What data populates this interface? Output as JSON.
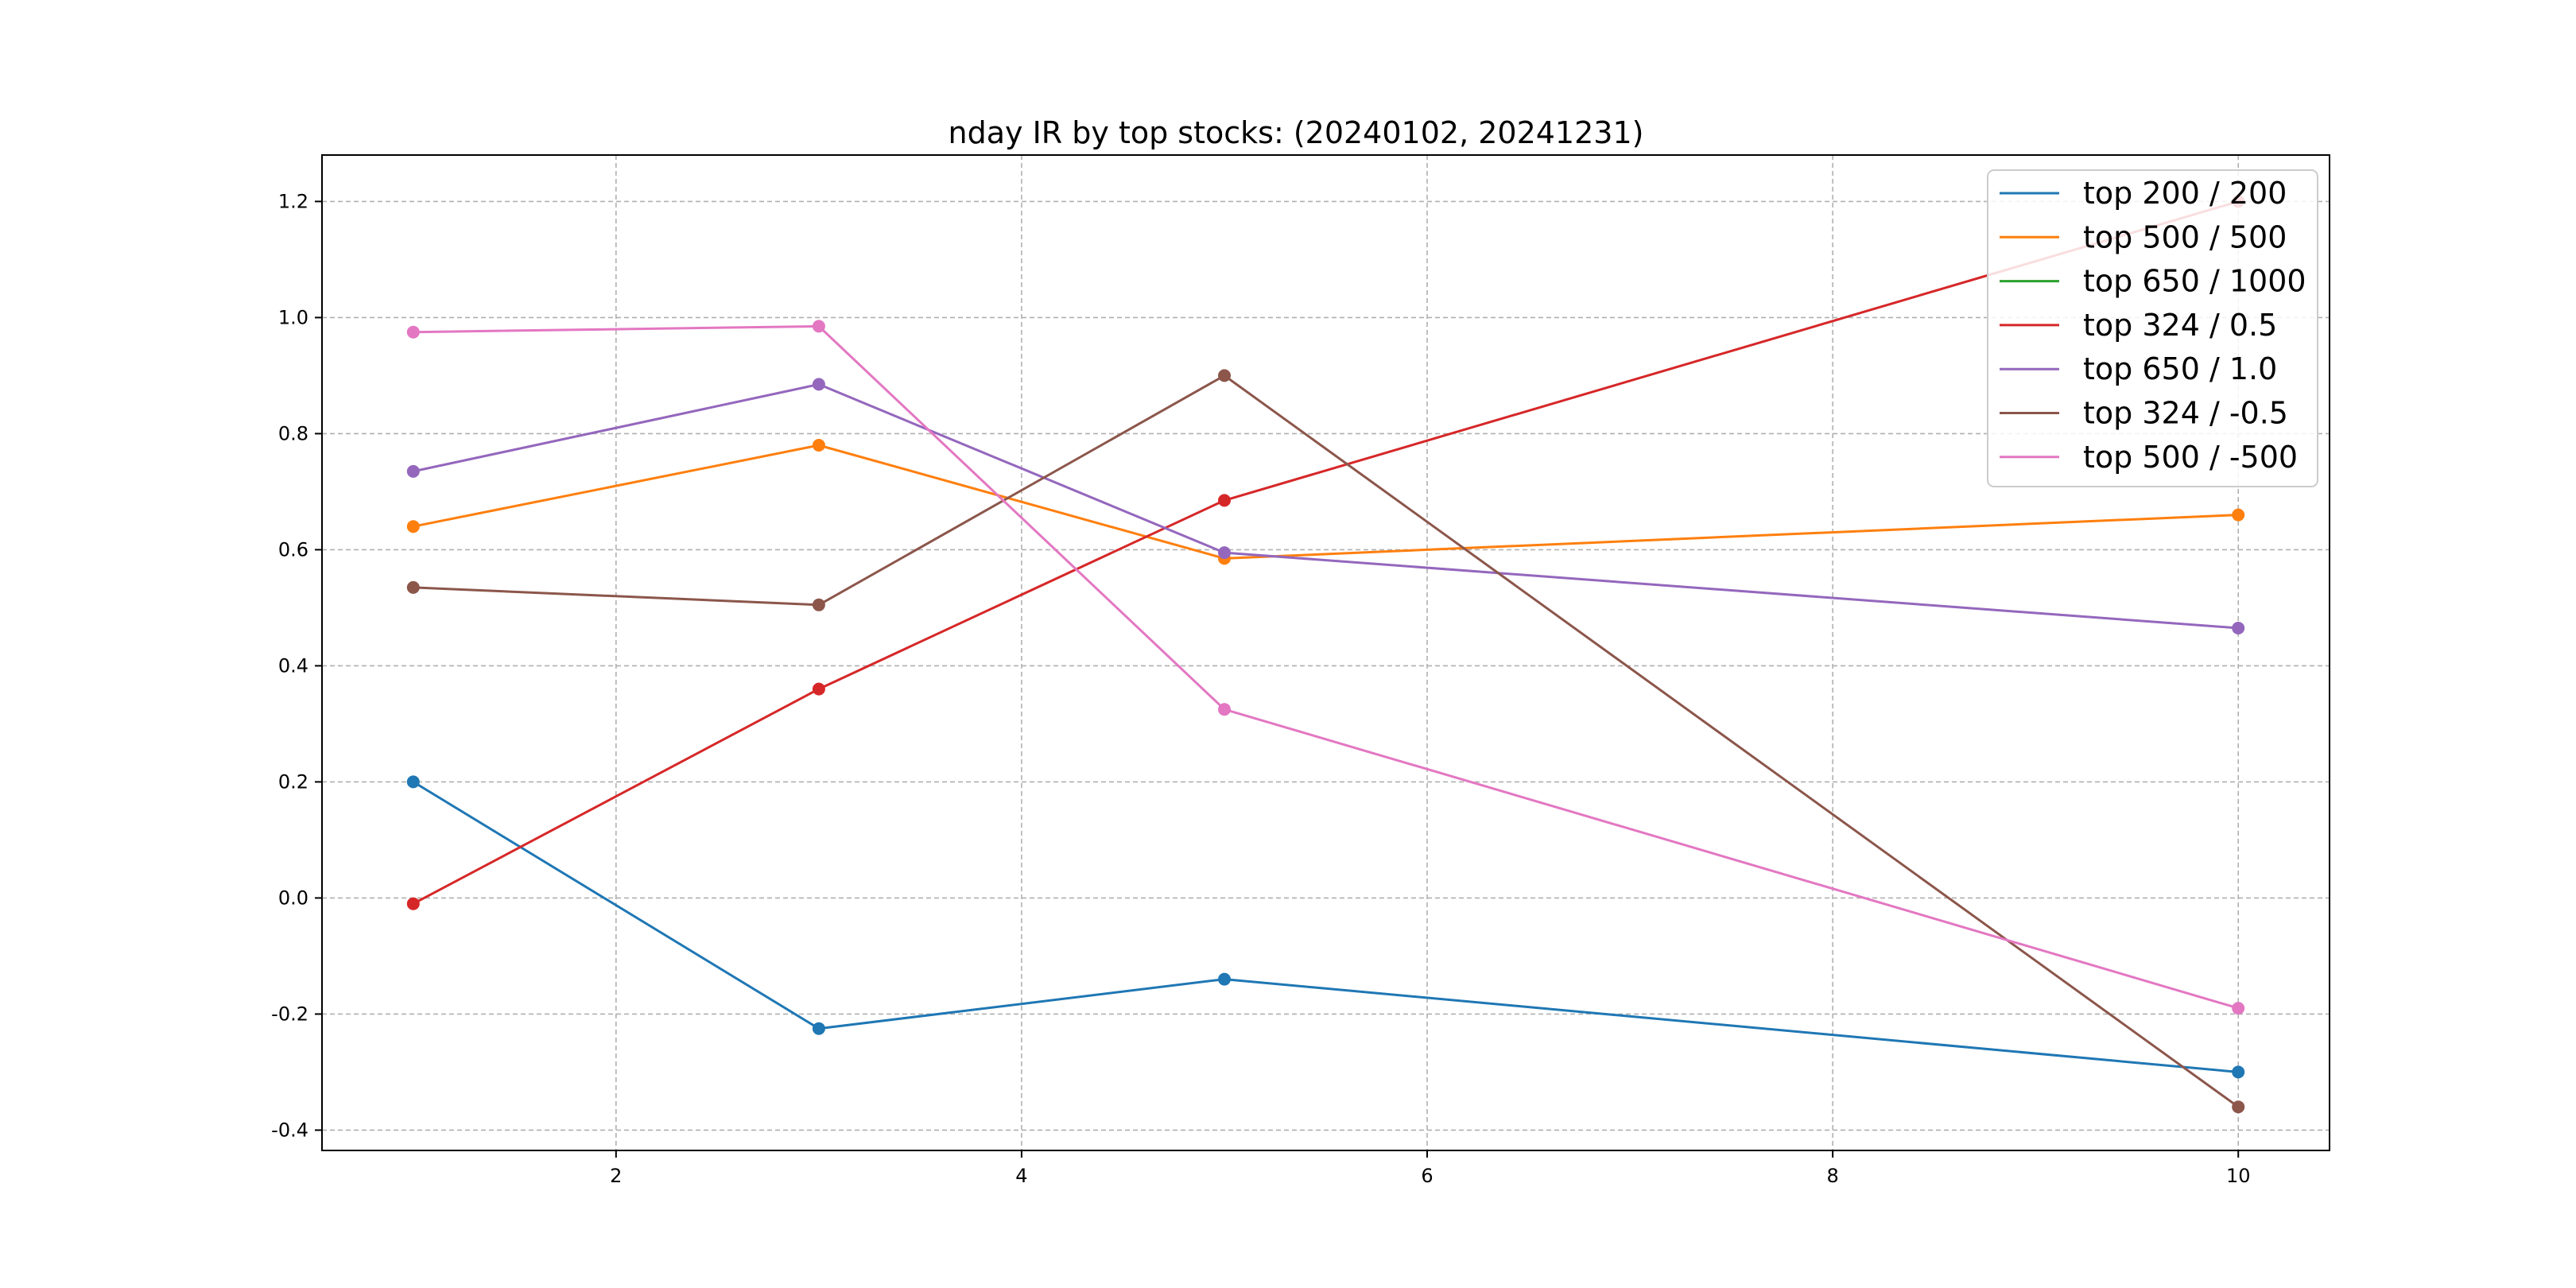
{
  "chart_data": {
    "type": "line",
    "title": "nday IR by top stocks: (20240102, 20241231)",
    "xlabel": "",
    "ylabel": "",
    "xlim": [
      0.55,
      10.45
    ],
    "ylim": [
      -0.435,
      1.28
    ],
    "xticks": [
      2,
      4,
      6,
      8,
      10
    ],
    "yticks": [
      -0.4,
      -0.2,
      0.0,
      0.2,
      0.4,
      0.6,
      0.8,
      1.0,
      1.2
    ],
    "xtick_labels": [
      "2",
      "4",
      "6",
      "8",
      "10"
    ],
    "ytick_labels": [
      "-0.4",
      "-0.2",
      "0.0",
      "0.2",
      "0.4",
      "0.6",
      "0.8",
      "1.0",
      "1.2"
    ],
    "grid": true,
    "legend_position": "top-right",
    "x": [
      1,
      3,
      5,
      10
    ],
    "series": [
      {
        "name": "top 200 / 200",
        "color": "#1f77b4",
        "values": [
          0.2,
          -0.225,
          -0.14,
          -0.3
        ]
      },
      {
        "name": "top 500 / 500",
        "color": "#ff7f0e",
        "values": [
          0.64,
          0.78,
          0.585,
          0.66
        ]
      },
      {
        "name": "top 650 / 1000",
        "color": "#2ca02c",
        "values": [
          null,
          null,
          null,
          null
        ]
      },
      {
        "name": "top 324 / 0.5",
        "color": "#d62728",
        "values": [
          -0.01,
          0.36,
          0.685,
          1.2
        ]
      },
      {
        "name": "top 650 / 1.0",
        "color": "#9467bd",
        "values": [
          0.735,
          0.885,
          0.595,
          0.465
        ]
      },
      {
        "name": "top 324 / -0.5",
        "color": "#8c564b",
        "values": [
          0.535,
          0.505,
          0.9,
          -0.36
        ]
      },
      {
        "name": "top 500 / -500",
        "color": "#e377c2",
        "values": [
          0.975,
          0.985,
          0.325,
          -0.19
        ]
      }
    ]
  }
}
